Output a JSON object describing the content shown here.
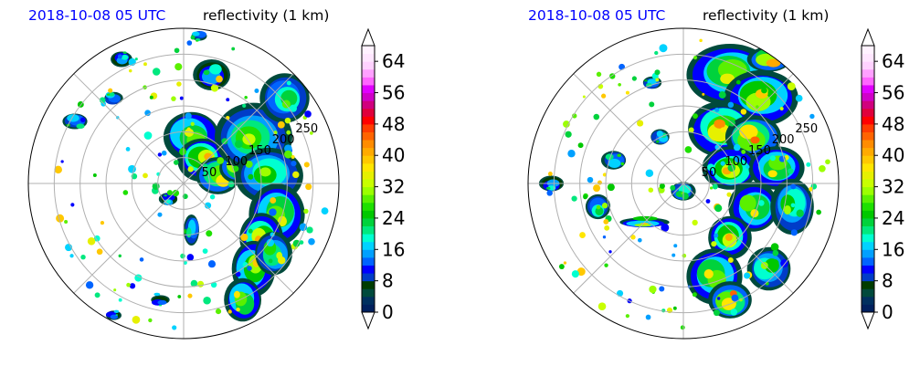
{
  "panels": [
    {
      "date_title": "2018-10-08 05 UTC",
      "var_title": "reflectivity (1 km)",
      "colorbar_ticks": [
        0,
        8,
        16,
        24,
        32,
        40,
        48,
        56,
        64
      ],
      "ring_labels": [
        "50",
        "100",
        "150",
        "200",
        "250"
      ]
    },
    {
      "date_title": "2018-10-08 05 UTC",
      "var_title": "reflectivity (1 km)",
      "colorbar_ticks": [
        0,
        8,
        16,
        24,
        32,
        40,
        48,
        56,
        64
      ],
      "ring_labels": [
        "50",
        "100",
        "150",
        "200",
        "250"
      ]
    }
  ],
  "chart_data": [
    {
      "type": "heatmap",
      "projection": "polar",
      "title": "2018-10-08 05 UTC   reflectivity (1 km)",
      "range_rings_km": [
        50,
        100,
        150,
        200,
        250
      ],
      "radial_lines_deg": [
        0,
        45,
        90,
        135,
        180,
        225,
        270,
        315
      ],
      "colorbar": {
        "vmin": 0,
        "vmax": 68,
        "step": 2,
        "ticks": [
          0,
          8,
          16,
          24,
          32,
          40,
          48,
          56,
          64
        ],
        "extend": "both"
      },
      "grid": true
    },
    {
      "type": "heatmap",
      "projection": "polar",
      "title": "2018-10-08 05 UTC   reflectivity (1 km)",
      "range_rings_km": [
        50,
        100,
        150,
        200,
        250
      ],
      "radial_lines_deg": [
        0,
        45,
        90,
        135,
        180,
        225,
        270,
        315
      ],
      "colorbar": {
        "vmin": 0,
        "vmax": 68,
        "step": 2,
        "ticks": [
          0,
          8,
          16,
          24,
          32,
          40,
          48,
          56,
          64
        ],
        "extend": "both"
      },
      "grid": true
    }
  ],
  "colors": {
    "levels": [
      "#00205e",
      "#00305f",
      "#004a3c",
      "#003c00",
      "#003cc8",
      "#0000ff",
      "#0064ff",
      "#00a0ff",
      "#00d2ff",
      "#00ffd0",
      "#00e87e",
      "#00d23c",
      "#00c800",
      "#1ee000",
      "#5af000",
      "#9cff00",
      "#c8ff00",
      "#e6f000",
      "#ffe600",
      "#ffc800",
      "#ffaa00",
      "#ff8c00",
      "#ff6400",
      "#ff3c00",
      "#ff0000",
      "#e0003c",
      "#d0007e",
      "#d000c8",
      "#e000ff",
      "#ff64ff",
      "#ffa0ff",
      "#ffd2ff",
      "#ffe6ff",
      "#fff2ff"
    ],
    "under": "#ffffff",
    "over": "#ffffff",
    "grid": "#b0b0b0"
  }
}
